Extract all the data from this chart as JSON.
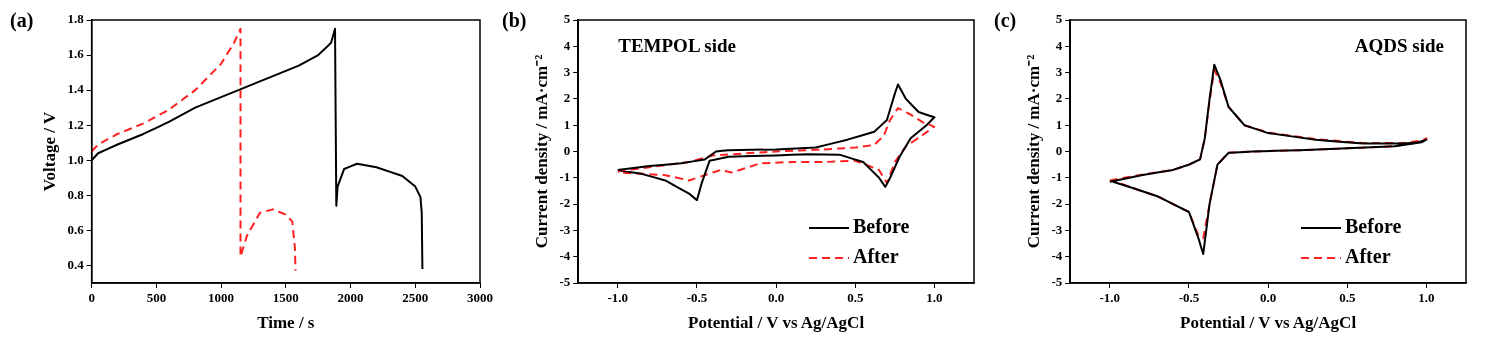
{
  "chart_data": [
    {
      "type": "line",
      "xlabel": "Time / s",
      "ylabel": "Voltage / V",
      "annotations": [
        "(a)"
      ],
      "xlim": [
        0,
        3000
      ],
      "xticks": [
        0,
        500,
        1000,
        1500,
        2000,
        2500,
        3000
      ],
      "ylim": [
        0.3,
        1.8
      ],
      "yticks": [
        {
          "value": 0.4,
          "label": "0.4"
        },
        {
          "value": 0.6,
          "label": "0.6"
        },
        {
          "value": 0.8,
          "label": "0.8"
        },
        {
          "value": 1.0,
          "label": "1.0"
        },
        {
          "value": 1.2,
          "label": "1.2"
        },
        {
          "value": 1.4,
          "label": "1.4"
        },
        {
          "value": 1.6,
          "label": "1.6"
        },
        {
          "value": 1.8,
          "label": "1.8"
        }
      ],
      "grid": false,
      "legend": false,
      "marker": "none",
      "series": [
        {
          "color": "#000000",
          "line_style": "solid",
          "x": [
            0,
            50,
            200,
            400,
            600,
            800,
            1000,
            1200,
            1400,
            1600,
            1750,
            1850,
            1880,
            1890,
            1900,
            1950,
            2050,
            2200,
            2400,
            2500,
            2540,
            2550,
            2555
          ],
          "values": [
            1.0,
            1.04,
            1.09,
            1.15,
            1.22,
            1.3,
            1.36,
            1.42,
            1.48,
            1.54,
            1.6,
            1.67,
            1.75,
            0.74,
            0.85,
            0.95,
            0.98,
            0.96,
            0.91,
            0.85,
            0.79,
            0.7,
            0.38
          ]
        },
        {
          "color": "#ff2020",
          "line_style": "dashed",
          "x": [
            0,
            50,
            200,
            400,
            600,
            800,
            1000,
            1100,
            1150,
            1150,
            1200,
            1300,
            1400,
            1500,
            1550,
            1570,
            1575
          ],
          "values": [
            1.05,
            1.09,
            1.15,
            1.21,
            1.29,
            1.4,
            1.55,
            1.67,
            1.75,
            0.45,
            0.57,
            0.7,
            0.72,
            0.69,
            0.65,
            0.5,
            0.37
          ]
        }
      ]
    },
    {
      "type": "line",
      "xlabel": "Potential / V vs Ag/AgCl",
      "ylabel": "Current density / mA·cm⁻²",
      "annotations": [
        "(b)",
        "TEMPOL side"
      ],
      "xlim": [
        -1.25,
        1.25
      ],
      "xticks": [
        {
          "value": -1,
          "label": "-1.0"
        },
        -0.5,
        {
          "value": 0,
          "label": "0.0"
        },
        0.5,
        {
          "value": 1,
          "label": "1.0"
        }
      ],
      "ylim": [
        -5,
        5
      ],
      "yticks": [
        -5,
        -4,
        -3,
        -2,
        -1,
        0,
        1,
        2,
        3,
        4,
        5
      ],
      "grid": false,
      "legend": "bottom right",
      "marker": "none",
      "series": [
        {
          "name": "Before",
          "color": "#000000",
          "line_style": "solid",
          "x": [
            -1,
            -0.8,
            -0.6,
            -0.45,
            -0.38,
            -0.3,
            0,
            0.25,
            0.45,
            0.62,
            0.7,
            0.75,
            0.77,
            0.82,
            0.9,
            1.0,
            0.95,
            0.85,
            0.78,
            0.72,
            0.69,
            0.65,
            0.55,
            0.4,
            0.2,
            0,
            -0.3,
            -0.42,
            -0.47,
            -0.5,
            -0.55,
            -0.7,
            -0.85,
            -0.98
          ],
          "values": [
            -0.7,
            -0.55,
            -0.45,
            -0.3,
            0,
            0.05,
            0.08,
            0.15,
            0.45,
            0.75,
            1.2,
            2.2,
            2.55,
            2.0,
            1.5,
            1.3,
            1.0,
            0.5,
            -0.2,
            -1.0,
            -1.35,
            -1.0,
            -0.4,
            -0.12,
            -0.1,
            -0.15,
            -0.2,
            -0.35,
            -1.2,
            -1.85,
            -1.6,
            -1.1,
            -0.85,
            -0.72
          ]
        },
        {
          "name": "After",
          "color": "#ff2020",
          "line_style": "dashed",
          "x": [
            -1,
            -0.8,
            -0.55,
            -0.4,
            0,
            0.3,
            0.5,
            0.62,
            0.68,
            0.72,
            0.77,
            0.85,
            0.93,
            1.0,
            0.92,
            0.82,
            0.75,
            0.7,
            0.65,
            0.5,
            0.3,
            0.1,
            -0.1,
            -0.28,
            -0.35,
            -0.45,
            -0.55,
            -0.7,
            -1
          ],
          "values": [
            -0.75,
            -0.6,
            -0.4,
            -0.15,
            0,
            0.08,
            0.15,
            0.25,
            0.6,
            1.2,
            1.65,
            1.4,
            1.1,
            0.95,
            0.6,
            0.2,
            -0.4,
            -1.2,
            -0.7,
            -0.35,
            -0.4,
            -0.4,
            -0.45,
            -0.8,
            -0.7,
            -0.9,
            -1.1,
            -0.9,
            -0.8
          ]
        }
      ]
    },
    {
      "type": "line",
      "xlabel": "Potential / V vs Ag/AgCl",
      "ylabel": "Current density / mA·cm⁻²",
      "annotations": [
        "(c)",
        "AQDS side"
      ],
      "xlim": [
        -1.25,
        1.25
      ],
      "xticks": [
        {
          "value": -1,
          "label": "-1.0"
        },
        -0.5,
        {
          "value": 0,
          "label": "0.0"
        },
        0.5,
        {
          "value": 1,
          "label": "1.0"
        }
      ],
      "ylim": [
        -5,
        5
      ],
      "yticks": [
        -5,
        -4,
        -3,
        -2,
        -1,
        0,
        1,
        2,
        3,
        4,
        5
      ],
      "grid": false,
      "legend": "bottom right",
      "marker": "none",
      "series": [
        {
          "name": "Before",
          "color": "#000000",
          "line_style": "solid",
          "x": [
            -1,
            -0.8,
            -0.6,
            -0.5,
            -0.43,
            -0.4,
            -0.37,
            -0.34,
            -0.3,
            -0.25,
            -0.15,
            0,
            0.3,
            0.6,
            0.85,
            0.95,
            1.0,
            0.97,
            0.8,
            0.5,
            0.2,
            -0.1,
            -0.25,
            -0.32,
            -0.37,
            -0.41,
            -0.44,
            -0.5,
            -0.7,
            -0.85,
            -0.98
          ],
          "values": [
            -1.15,
            -0.9,
            -0.7,
            -0.5,
            -0.3,
            0.5,
            2,
            3.3,
            2.7,
            1.7,
            1.0,
            0.7,
            0.45,
            0.3,
            0.3,
            0.35,
            0.45,
            0.35,
            0.2,
            0.12,
            0.05,
            0,
            -0.05,
            -0.5,
            -2,
            -3.9,
            -3.3,
            -2.3,
            -1.7,
            -1.4,
            -1.15
          ]
        },
        {
          "name": "After",
          "color": "#ff2020",
          "line_style": "dashed",
          "x": [
            -1,
            -0.8,
            -0.6,
            -0.5,
            -0.43,
            -0.4,
            -0.37,
            -0.34,
            -0.3,
            -0.25,
            -0.15,
            0,
            0.3,
            0.6,
            0.85,
            0.95,
            1.0,
            0.97,
            0.8,
            0.5,
            0.2,
            -0.1,
            -0.25,
            -0.32,
            -0.37,
            -0.41,
            -0.44,
            -0.5,
            -0.7,
            -0.85,
            -0.98
          ],
          "values": [
            -1.1,
            -0.88,
            -0.7,
            -0.5,
            -0.3,
            0.5,
            1.9,
            3.1,
            2.6,
            1.7,
            1.0,
            0.72,
            0.47,
            0.32,
            0.32,
            0.4,
            0.5,
            0.37,
            0.2,
            0.12,
            0.05,
            0,
            -0.05,
            -0.5,
            -2,
            -3.3,
            -3.2,
            -2.3,
            -1.7,
            -1.4,
            -1.1
          ]
        }
      ]
    }
  ]
}
